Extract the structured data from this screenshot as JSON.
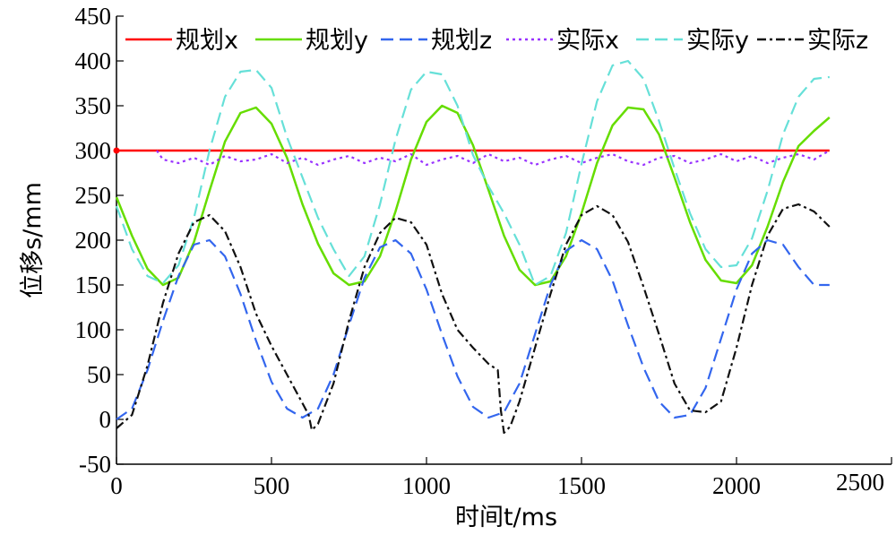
{
  "chart_data": {
    "type": "line",
    "xlabel": "时间t/ms",
    "ylabel": "位移s/mm",
    "xlim": [
      0,
      2500
    ],
    "ylim": [
      -50,
      450
    ],
    "x_ticks": [
      0,
      500,
      1000,
      1500,
      2000,
      2500
    ],
    "y_ticks": [
      -50,
      0,
      50,
      100,
      150,
      200,
      250,
      300,
      350,
      400,
      450
    ],
    "grid": false,
    "legend_position": "top",
    "series": [
      {
        "name": "规划x",
        "color": "#ff0000",
        "dash": "solid",
        "x": [
          0,
          2300
        ],
        "values": [
          300,
          300
        ]
      },
      {
        "name": "规划y",
        "color": "#66dd00",
        "dash": "solid",
        "x": [
          0,
          50,
          100,
          150,
          200,
          250,
          300,
          350,
          400,
          450,
          500,
          550,
          600,
          650,
          700,
          750,
          800,
          850,
          900,
          950,
          1000,
          1050,
          1100,
          1150,
          1200,
          1250,
          1300,
          1350,
          1400,
          1450,
          1500,
          1550,
          1600,
          1650,
          1700,
          1750,
          1800,
          1850,
          1900,
          1950,
          2000,
          2050,
          2100,
          2150,
          2200,
          2250,
          2300
        ],
        "values": [
          248,
          205,
          168,
          150,
          158,
          198,
          255,
          310,
          342,
          348,
          330,
          292,
          240,
          196,
          163,
          150,
          154,
          182,
          232,
          290,
          332,
          350,
          342,
          306,
          256,
          205,
          167,
          150,
          154,
          182,
          230,
          286,
          328,
          348,
          346,
          318,
          270,
          220,
          178,
          155,
          152,
          172,
          215,
          265,
          305,
          322,
          337
        ]
      },
      {
        "name": "规划z",
        "color": "#3366ee",
        "dash": "long-dash",
        "x": [
          0,
          50,
          100,
          150,
          200,
          250,
          300,
          350,
          400,
          450,
          500,
          550,
          600,
          650,
          700,
          750,
          800,
          850,
          900,
          950,
          1000,
          1050,
          1100,
          1150,
          1200,
          1250,
          1300,
          1350,
          1400,
          1450,
          1500,
          1550,
          1600,
          1650,
          1700,
          1750,
          1800,
          1850,
          1900,
          1950,
          2000,
          2050,
          2100,
          2150,
          2200,
          2250,
          2300
        ],
        "values": [
          0,
          12,
          55,
          110,
          160,
          195,
          200,
          182,
          140,
          88,
          42,
          12,
          2,
          12,
          50,
          105,
          158,
          192,
          200,
          185,
          145,
          95,
          48,
          14,
          2,
          8,
          40,
          95,
          150,
          188,
          200,
          190,
          155,
          105,
          58,
          20,
          2,
          5,
          35,
          90,
          145,
          185,
          200,
          195,
          170,
          150,
          150
        ]
      },
      {
        "name": "实际x",
        "color": "#9933ff",
        "dash": "dotted",
        "x": [
          130,
          150,
          200,
          250,
          300,
          350,
          400,
          450,
          500,
          550,
          600,
          650,
          700,
          750,
          800,
          850,
          900,
          950,
          1000,
          1050,
          1100,
          1150,
          1200,
          1250,
          1300,
          1350,
          1400,
          1450,
          1500,
          1550,
          1600,
          1650,
          1700,
          1750,
          1800,
          1850,
          1900,
          1950,
          2000,
          2050,
          2100,
          2150,
          2200,
          2250,
          2300
        ],
        "values": [
          300,
          290,
          286,
          292,
          284,
          294,
          288,
          290,
          296,
          286,
          292,
          284,
          290,
          294,
          286,
          292,
          288,
          296,
          284,
          290,
          294,
          286,
          296,
          288,
          292,
          284,
          290,
          294,
          286,
          292,
          296,
          288,
          284,
          292,
          294,
          286,
          290,
          296,
          288,
          294,
          286,
          292,
          296,
          290,
          300
        ]
      },
      {
        "name": "实际y",
        "color": "#66e0d8",
        "dash": "long-dash",
        "x": [
          0,
          50,
          100,
          150,
          200,
          250,
          300,
          350,
          400,
          450,
          500,
          550,
          600,
          650,
          700,
          750,
          800,
          850,
          900,
          950,
          1000,
          1050,
          1100,
          1150,
          1200,
          1250,
          1300,
          1350,
          1400,
          1450,
          1500,
          1550,
          1600,
          1650,
          1700,
          1750,
          1800,
          1850,
          1900,
          1950,
          2000,
          2050,
          2100,
          2150,
          2200,
          2250,
          2300
        ],
        "values": [
          238,
          190,
          160,
          152,
          172,
          225,
          300,
          360,
          388,
          390,
          370,
          315,
          270,
          225,
          190,
          160,
          182,
          240,
          312,
          368,
          388,
          385,
          350,
          295,
          260,
          230,
          195,
          150,
          160,
          208,
          285,
          355,
          395,
          400,
          380,
          333,
          280,
          230,
          190,
          170,
          172,
          202,
          255,
          318,
          360,
          380,
          382
        ]
      },
      {
        "name": "实际z",
        "color": "#111111",
        "dash": "dash-dot",
        "x": [
          0,
          50,
          100,
          150,
          200,
          250,
          300,
          350,
          400,
          450,
          500,
          550,
          600,
          620,
          630,
          650,
          700,
          750,
          800,
          850,
          900,
          950,
          1000,
          1050,
          1100,
          1150,
          1200,
          1230,
          1240,
          1250,
          1270,
          1300,
          1350,
          1400,
          1450,
          1500,
          1550,
          1600,
          1650,
          1700,
          1750,
          1800,
          1850,
          1900,
          1950,
          2000,
          2050,
          2100,
          2150,
          2200,
          2250,
          2300
        ],
        "values": [
          -10,
          5,
          60,
          130,
          185,
          220,
          228,
          210,
          170,
          118,
          82,
          50,
          18,
          5,
          -12,
          -5,
          40,
          110,
          170,
          208,
          225,
          220,
          195,
          140,
          100,
          80,
          62,
          55,
          10,
          -15,
          -8,
          20,
          80,
          140,
          195,
          228,
          238,
          228,
          198,
          148,
          95,
          40,
          10,
          8,
          20,
          80,
          150,
          205,
          235,
          240,
          232,
          215
        ]
      }
    ]
  }
}
